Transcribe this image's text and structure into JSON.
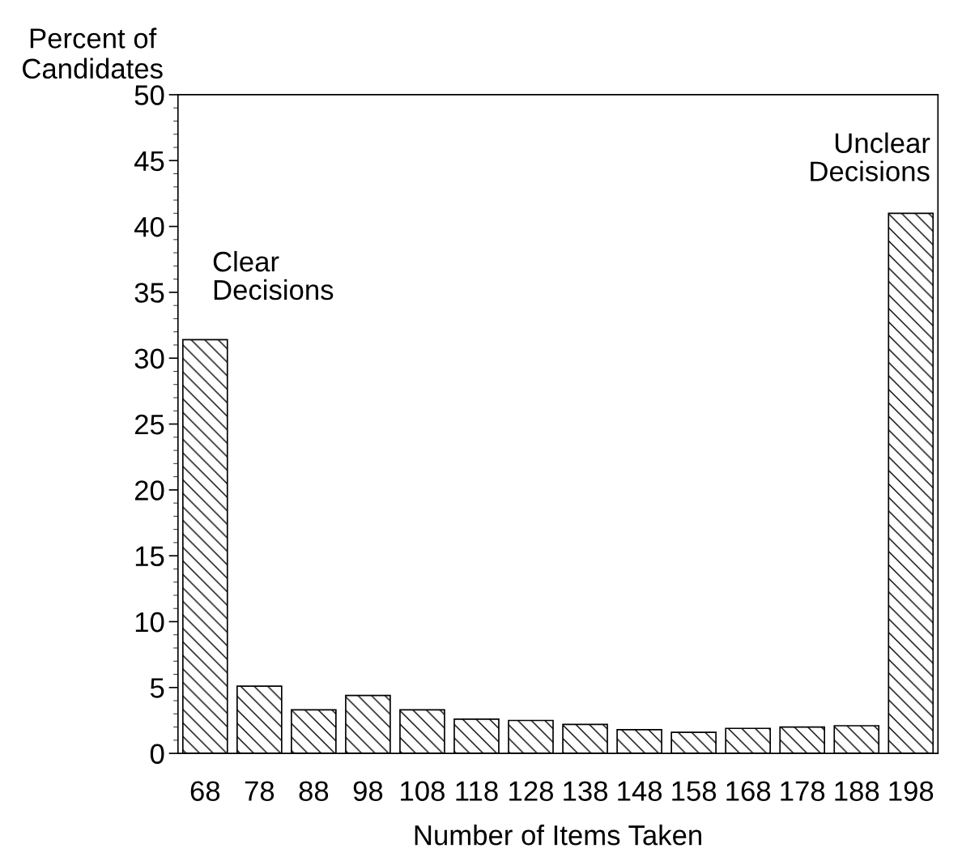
{
  "chart_data": {
    "type": "bar",
    "xlabel": "Number of Items Taken",
    "ylabel": "Percent of\nCandidates",
    "categories": [
      "68",
      "78",
      "88",
      "98",
      "108",
      "118",
      "128",
      "138",
      "148",
      "158",
      "168",
      "178",
      "188",
      "198"
    ],
    "values": [
      31.4,
      5.1,
      3.3,
      4.4,
      3.3,
      2.6,
      2.5,
      2.2,
      1.8,
      1.6,
      1.9,
      2.0,
      2.1,
      41.0
    ],
    "color": "#000000",
    "ylim": [
      0,
      50
    ],
    "yticks": [
      0,
      5,
      10,
      15,
      20,
      25,
      30,
      35,
      40,
      45,
      50
    ],
    "annotations": [
      "Clear\nDecisions",
      "Unclear\nDecisions"
    ],
    "grid": false,
    "legend": false
  }
}
